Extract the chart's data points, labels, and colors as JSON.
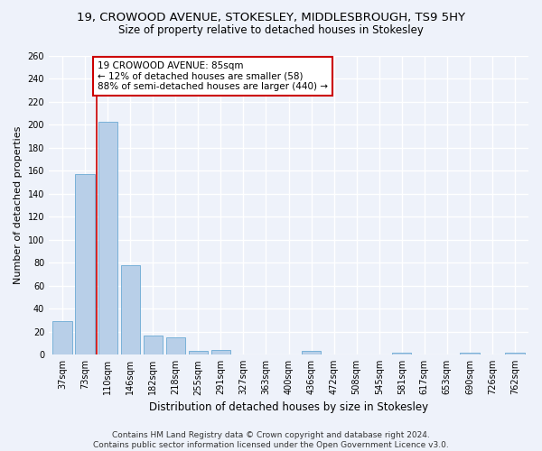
{
  "title_line1": "19, CROWOOD AVENUE, STOKESLEY, MIDDLESBROUGH, TS9 5HY",
  "title_line2": "Size of property relative to detached houses in Stokesley",
  "xlabel": "Distribution of detached houses by size in Stokesley",
  "ylabel": "Number of detached properties",
  "categories": [
    "37sqm",
    "73sqm",
    "110sqm",
    "146sqm",
    "182sqm",
    "218sqm",
    "255sqm",
    "291sqm",
    "327sqm",
    "363sqm",
    "400sqm",
    "436sqm",
    "472sqm",
    "508sqm",
    "545sqm",
    "581sqm",
    "617sqm",
    "653sqm",
    "690sqm",
    "726sqm",
    "762sqm"
  ],
  "values": [
    29,
    157,
    202,
    78,
    17,
    15,
    3,
    4,
    0,
    0,
    0,
    3,
    0,
    0,
    0,
    2,
    0,
    0,
    2,
    0,
    2
  ],
  "bar_color": "#b8cfe8",
  "bar_edge_color": "#6aaad4",
  "red_line_x": 1.5,
  "annotation_text": "19 CROWOOD AVENUE: 85sqm\n← 12% of detached houses are smaller (58)\n88% of semi-detached houses are larger (440) →",
  "annotation_box_color": "#ffffff",
  "annotation_box_edge": "#cc0000",
  "red_line_color": "#cc0000",
  "ylim": [
    0,
    260
  ],
  "yticks": [
    0,
    20,
    40,
    60,
    80,
    100,
    120,
    140,
    160,
    180,
    200,
    220,
    240,
    260
  ],
  "footer_line1": "Contains HM Land Registry data © Crown copyright and database right 2024.",
  "footer_line2": "Contains public sector information licensed under the Open Government Licence v3.0.",
  "background_color": "#eef2fa",
  "grid_color": "#ffffff",
  "title_fontsize": 9.5,
  "subtitle_fontsize": 8.5,
  "axis_label_fontsize": 8,
  "tick_fontsize": 7,
  "footer_fontsize": 6.5,
  "annotation_fontsize": 7.5
}
